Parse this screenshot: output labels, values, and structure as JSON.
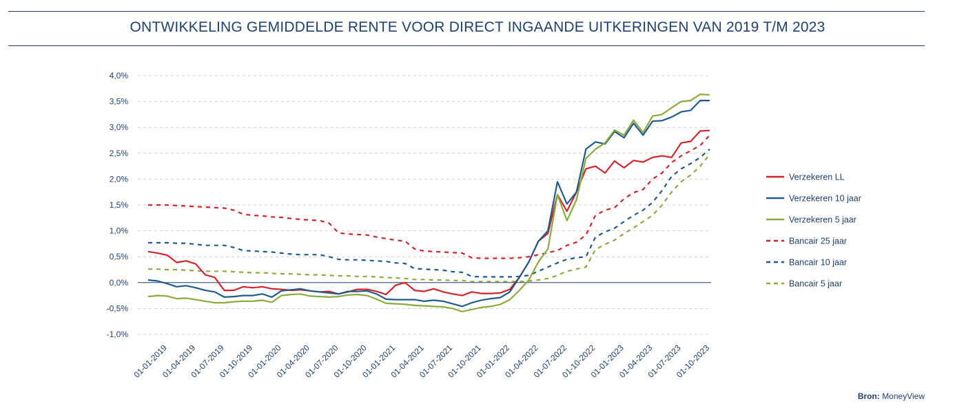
{
  "header": {
    "title": "ONTWIKKELING GEMIDDELDE RENTE VOOR DIRECT INGAANDE UITKERINGEN VAN 2019 T/M 2023"
  },
  "source": {
    "label": "Bron:",
    "value": "MoneyView"
  },
  "chart_data": {
    "type": "line",
    "title": "ONTWIKKELING GEMIDDELDE RENTE VOOR DIRECT INGAANDE UITKERINGEN VAN 2019 T/M 2023",
    "xlabel": "",
    "ylabel": "",
    "ylim": [
      -1.0,
      4.0
    ],
    "yticks": [
      4.0,
      3.5,
      3.0,
      2.5,
      2.0,
      1.5,
      1.0,
      0.5,
      0.0,
      -0.5,
      -1.0
    ],
    "ytick_labels": [
      "4,0%",
      "3,5%",
      "3,0%",
      "2,5%",
      "2,0%",
      "1,5%",
      "1,0%",
      "0,5%",
      "0,0%",
      "-0,5%",
      "-1,0%"
    ],
    "grid": true,
    "legend_position": "right",
    "x_tick_labels": [
      "01-01-2019",
      "01-04-2019",
      "01-07-2019",
      "01-10-2019",
      "01-01-2020",
      "01-04-2020",
      "01-07-2020",
      "01-10-2020",
      "01-01-2021",
      "01-04-2021",
      "01-07-2021",
      "01-10-2021",
      "01-01-2022",
      "01-04-2022",
      "01-07-2022",
      "01-10-2022",
      "01-01-2023",
      "01-04-2023",
      "01-07-2023",
      "01-10-2023"
    ],
    "x": [
      "2019-01",
      "2019-02",
      "2019-03",
      "2019-04",
      "2019-05",
      "2019-06",
      "2019-07",
      "2019-08",
      "2019-09",
      "2019-10",
      "2019-11",
      "2019-12",
      "2020-01",
      "2020-02",
      "2020-03",
      "2020-04",
      "2020-05",
      "2020-06",
      "2020-07",
      "2020-08",
      "2020-09",
      "2020-10",
      "2020-11",
      "2020-12",
      "2021-01",
      "2021-02",
      "2021-03",
      "2021-04",
      "2021-05",
      "2021-06",
      "2021-07",
      "2021-08",
      "2021-09",
      "2021-10",
      "2021-11",
      "2021-12",
      "2022-01",
      "2022-02",
      "2022-03",
      "2022-04",
      "2022-05",
      "2022-06",
      "2022-07",
      "2022-08",
      "2022-09",
      "2022-10",
      "2022-11",
      "2022-12",
      "2023-01",
      "2023-02",
      "2023-03",
      "2023-04",
      "2023-05",
      "2023-06",
      "2023-07",
      "2023-08",
      "2023-09",
      "2023-10",
      "2023-11",
      "2023-12"
    ],
    "series": [
      {
        "name": "Verzekeren LL",
        "color": "#d2232a",
        "dash": false,
        "values": [
          0.6,
          0.57,
          0.53,
          0.39,
          0.42,
          0.36,
          0.15,
          0.1,
          -0.15,
          -0.15,
          -0.08,
          -0.1,
          -0.08,
          -0.12,
          -0.13,
          -0.15,
          -0.14,
          -0.16,
          -0.18,
          -0.17,
          -0.22,
          -0.18,
          -0.13,
          -0.13,
          -0.17,
          -0.23,
          -0.05,
          0.0,
          -0.15,
          -0.17,
          -0.12,
          -0.18,
          -0.22,
          -0.25,
          -0.18,
          -0.21,
          -0.21,
          -0.2,
          -0.13,
          0.1,
          0.4,
          0.8,
          0.95,
          1.7,
          1.38,
          1.75,
          2.2,
          2.25,
          2.12,
          2.35,
          2.22,
          2.36,
          2.33,
          2.42,
          2.45,
          2.42,
          2.7,
          2.73,
          2.93,
          2.94
        ]
      },
      {
        "name": "Verzekeren 10 jaar",
        "color": "#1e5a8c",
        "dash": false,
        "values": [
          0.05,
          0.03,
          -0.02,
          -0.08,
          -0.06,
          -0.1,
          -0.15,
          -0.18,
          -0.28,
          -0.27,
          -0.25,
          -0.25,
          -0.22,
          -0.28,
          -0.16,
          -0.14,
          -0.12,
          -0.16,
          -0.18,
          -0.2,
          -0.22,
          -0.17,
          -0.17,
          -0.16,
          -0.22,
          -0.32,
          -0.33,
          -0.33,
          -0.33,
          -0.36,
          -0.34,
          -0.36,
          -0.41,
          -0.46,
          -0.39,
          -0.34,
          -0.31,
          -0.29,
          -0.18,
          0.1,
          0.4,
          0.8,
          1.0,
          1.95,
          1.52,
          1.75,
          2.58,
          2.72,
          2.68,
          2.92,
          2.8,
          3.08,
          2.85,
          3.12,
          3.13,
          3.2,
          3.3,
          3.33,
          3.52,
          3.52
        ]
      },
      {
        "name": "Verzekeren 5 jaar",
        "color": "#8aaa3c",
        "dash": false,
        "values": [
          -0.27,
          -0.25,
          -0.26,
          -0.31,
          -0.3,
          -0.33,
          -0.36,
          -0.39,
          -0.39,
          -0.37,
          -0.36,
          -0.36,
          -0.34,
          -0.38,
          -0.25,
          -0.23,
          -0.22,
          -0.26,
          -0.27,
          -0.28,
          -0.27,
          -0.24,
          -0.23,
          -0.25,
          -0.32,
          -0.4,
          -0.41,
          -0.42,
          -0.44,
          -0.45,
          -0.46,
          -0.47,
          -0.5,
          -0.56,
          -0.52,
          -0.48,
          -0.46,
          -0.42,
          -0.33,
          -0.15,
          0.05,
          0.4,
          0.65,
          1.7,
          1.2,
          1.6,
          2.4,
          2.58,
          2.7,
          2.95,
          2.85,
          3.14,
          2.9,
          3.22,
          3.25,
          3.38,
          3.5,
          3.52,
          3.64,
          3.63
        ]
      },
      {
        "name": "Bancair 25 jaar",
        "color": "#d2232a",
        "dash": true,
        "values": [
          1.5,
          1.5,
          1.5,
          1.49,
          1.48,
          1.47,
          1.46,
          1.45,
          1.44,
          1.4,
          1.32,
          1.3,
          1.29,
          1.27,
          1.26,
          1.24,
          1.22,
          1.21,
          1.2,
          1.15,
          0.96,
          0.94,
          0.93,
          0.92,
          0.88,
          0.85,
          0.82,
          0.8,
          0.65,
          0.61,
          0.6,
          0.59,
          0.58,
          0.57,
          0.48,
          0.47,
          0.47,
          0.47,
          0.47,
          0.48,
          0.5,
          0.54,
          0.58,
          0.62,
          0.72,
          0.78,
          0.92,
          1.3,
          1.4,
          1.45,
          1.62,
          1.74,
          1.8,
          2.0,
          2.12,
          2.32,
          2.45,
          2.55,
          2.65,
          2.85
        ]
      },
      {
        "name": "Bancair 10 jaar",
        "color": "#1e5a8c",
        "dash": true,
        "values": [
          0.77,
          0.77,
          0.77,
          0.76,
          0.76,
          0.74,
          0.72,
          0.72,
          0.72,
          0.68,
          0.62,
          0.61,
          0.6,
          0.59,
          0.57,
          0.55,
          0.54,
          0.54,
          0.54,
          0.5,
          0.45,
          0.44,
          0.44,
          0.43,
          0.42,
          0.41,
          0.38,
          0.37,
          0.27,
          0.26,
          0.25,
          0.24,
          0.21,
          0.2,
          0.12,
          0.11,
          0.11,
          0.11,
          0.11,
          0.12,
          0.14,
          0.22,
          0.3,
          0.38,
          0.45,
          0.48,
          0.5,
          0.88,
          0.98,
          1.05,
          1.18,
          1.3,
          1.4,
          1.55,
          1.78,
          2.05,
          2.2,
          2.3,
          2.42,
          2.58
        ]
      },
      {
        "name": "Bancair 5 jaar",
        "color": "#8aaa3c",
        "dash": true,
        "values": [
          0.26,
          0.26,
          0.25,
          0.25,
          0.24,
          0.23,
          0.22,
          0.22,
          0.22,
          0.21,
          0.2,
          0.19,
          0.19,
          0.18,
          0.17,
          0.17,
          0.16,
          0.15,
          0.15,
          0.14,
          0.13,
          0.13,
          0.12,
          0.12,
          0.11,
          0.1,
          0.09,
          0.08,
          0.06,
          0.06,
          0.05,
          0.05,
          0.04,
          0.04,
          0.02,
          0.02,
          0.02,
          0.02,
          0.02,
          0.02,
          0.03,
          0.05,
          0.08,
          0.14,
          0.22,
          0.26,
          0.3,
          0.64,
          0.74,
          0.82,
          0.95,
          1.06,
          1.18,
          1.3,
          1.5,
          1.75,
          1.95,
          2.08,
          2.25,
          2.48
        ]
      }
    ]
  }
}
